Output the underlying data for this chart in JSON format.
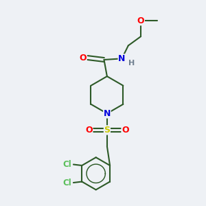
{
  "bg_color": "#eef1f5",
  "bond_color": "#2d5a27",
  "atom_colors": {
    "O": "#ff0000",
    "N": "#0000dd",
    "S": "#cccc00",
    "Cl": "#5abf5a",
    "H": "#708090",
    "C": "#2d5a27"
  },
  "line_width": 1.5,
  "figsize": [
    3.0,
    3.0
  ],
  "dpi": 100
}
